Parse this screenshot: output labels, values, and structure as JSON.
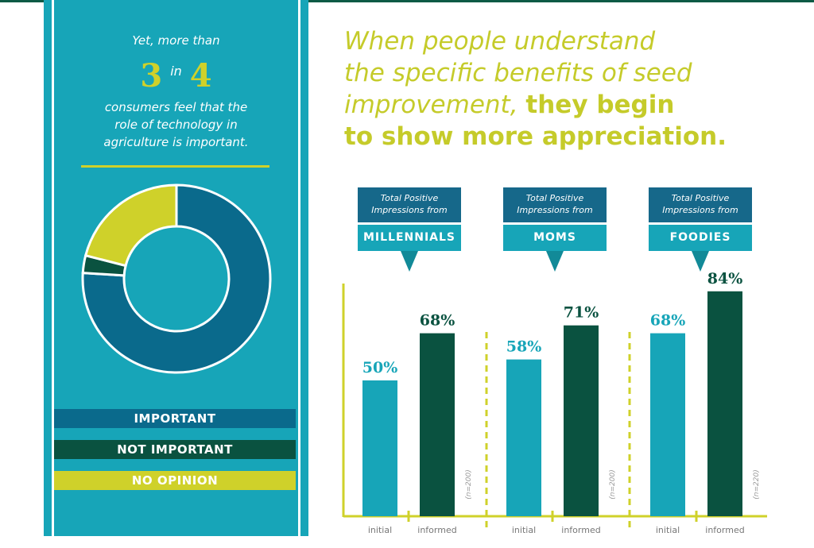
{
  "left_panel": {
    "intro": "Yet, more than",
    "big_a": "3",
    "big_in": "in",
    "big_b": "4",
    "body": [
      "consumers feel that the",
      "role of technology in",
      "agriculture is important."
    ],
    "donut": {
      "type": "pie",
      "slices": [
        {
          "label": "IMPORTANT",
          "value": 76,
          "color": "#0a6a8c"
        },
        {
          "label": "NOT IMPORTANT",
          "value": 3,
          "color": "#0a5240"
        },
        {
          "label": "NO OPINION",
          "value": 21,
          "color": "#cfd12a"
        }
      ]
    }
  },
  "headline": {
    "light": [
      "When people understand",
      "the specific benefits of seed",
      "improvement,"
    ],
    "bold_a": "they begin",
    "bold_b": "to show more appreciation."
  },
  "chart_data": {
    "type": "bar",
    "callout_prefix": "Total Positive Impressions from",
    "categories": [
      "MILLENNIALS",
      "MOMS",
      "FOODIES"
    ],
    "bar_labels": [
      "initial",
      "informed"
    ],
    "sample_sizes": [
      "(n=200)",
      "(n=200)",
      "(n=220)"
    ],
    "series": [
      {
        "name": "initial",
        "values": [
          50,
          58,
          68
        ],
        "color": "#17a5b8"
      },
      {
        "name": "informed",
        "values": [
          68,
          71,
          84
        ],
        "color": "#0a5240"
      }
    ],
    "unit": "%",
    "ylim": [
      0,
      100
    ],
    "axis_color": "#cfd12a"
  }
}
